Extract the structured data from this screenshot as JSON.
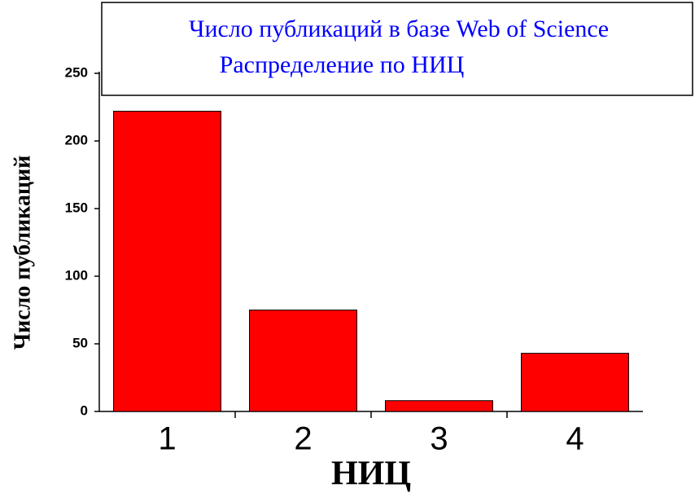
{
  "chart_data": {
    "type": "bar",
    "title": "Число публикаций в базе Web of Science",
    "subtitle": "Распределение по НИЦ",
    "x_label": "НИЦ",
    "y_label": "Число публикаций",
    "categories": [
      "1",
      "2",
      "3",
      "4"
    ],
    "values": [
      222,
      75,
      8,
      43
    ],
    "color": "#ff0000",
    "ylim": [
      0,
      250
    ],
    "yticks": [
      0,
      50,
      100,
      150,
      200,
      250
    ],
    "grid": false
  }
}
